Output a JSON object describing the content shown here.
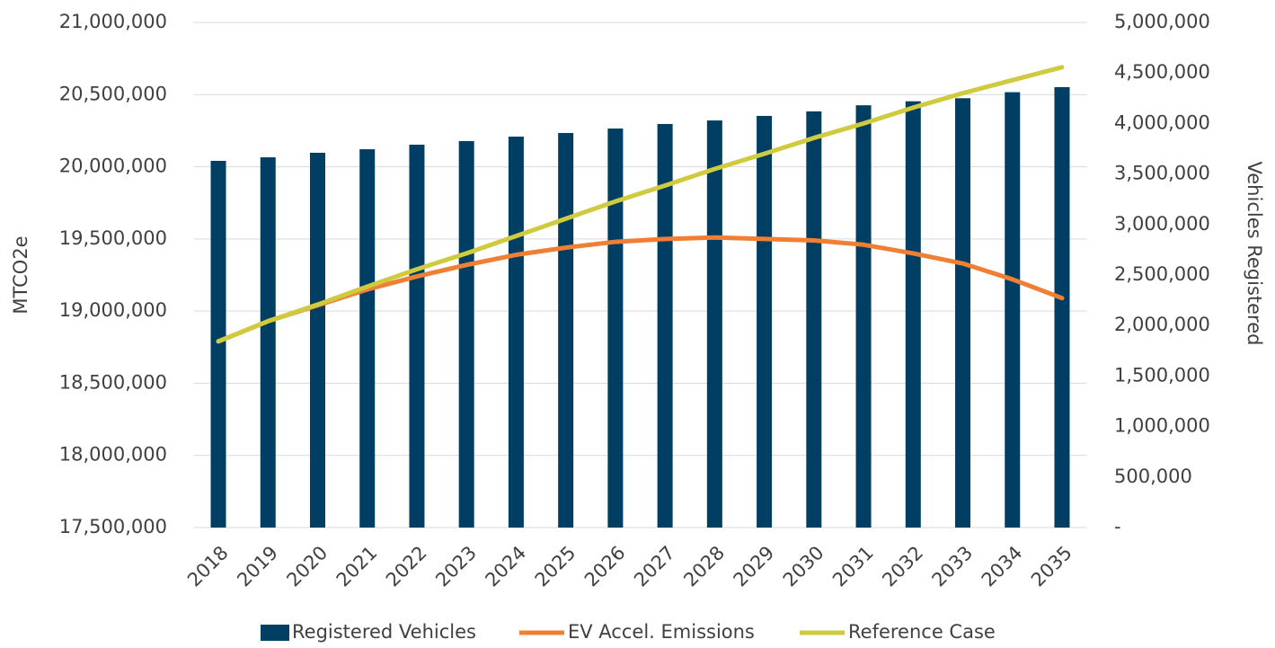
{
  "chart_data": {
    "type": "bar",
    "categories": [
      "2018",
      "2019",
      "2020",
      "2021",
      "2022",
      "2023",
      "2024",
      "2025",
      "2026",
      "2027",
      "2028",
      "2029",
      "2030",
      "2031",
      "2032",
      "2033",
      "2034",
      "2035"
    ],
    "series": [
      {
        "name": "Registered Vehicles",
        "type": "bar",
        "axis": "y2",
        "color": "#003f63",
        "values": [
          3630000,
          3665000,
          3710000,
          3745000,
          3790000,
          3826000,
          3870000,
          3906000,
          3950000,
          3995000,
          4030000,
          4075000,
          4120000,
          4180000,
          4220000,
          4250000,
          4310000,
          4360000
        ]
      },
      {
        "name": "EV Accel. Emissions",
        "type": "line",
        "color": "#ef7f35",
        "values": [
          18790000,
          18930000,
          19040000,
          19150000,
          19240000,
          19320000,
          19390000,
          19440000,
          19480000,
          19500000,
          19510000,
          19500000,
          19490000,
          19460000,
          19400000,
          19330000,
          19220000,
          19090000
        ]
      },
      {
        "name": "Reference Case",
        "type": "line",
        "color": "#cfca3e",
        "values": [
          18790000,
          18930000,
          19045000,
          19170000,
          19290000,
          19400000,
          19520000,
          19640000,
          19760000,
          19870000,
          19985000,
          20090000,
          20200000,
          20300000,
          20410000,
          20510000,
          20600000,
          20690000
        ]
      }
    ],
    "y_label": "MTCO2e",
    "y2_label": "Vehicles Registered",
    "ylim": [
      17500000,
      21000000
    ],
    "yticks": [
      {
        "value": 17500000,
        "label": "17,500,000"
      },
      {
        "value": 18000000,
        "label": "18,000,000"
      },
      {
        "value": 18500000,
        "label": "18,500,000"
      },
      {
        "value": 19000000,
        "label": "19,000,000"
      },
      {
        "value": 19500000,
        "label": "19,500,000"
      },
      {
        "value": 20000000,
        "label": "20,000,000"
      },
      {
        "value": 20500000,
        "label": "20,500,000"
      },
      {
        "value": 21000000,
        "label": "21,000,000"
      }
    ],
    "y2lim": [
      0,
      5000000
    ],
    "y2ticks": [
      {
        "value": 0,
        "label": "-"
      },
      {
        "value": 500000,
        "label": "500,000"
      },
      {
        "value": 1000000,
        "label": "1,000,000"
      },
      {
        "value": 1500000,
        "label": "1,500,000"
      },
      {
        "value": 2000000,
        "label": "2,000,000"
      },
      {
        "value": 2500000,
        "label": "2,500,000"
      },
      {
        "value": 3000000,
        "label": "3,000,000"
      },
      {
        "value": 3500000,
        "label": "3,500,000"
      },
      {
        "value": 4000000,
        "label": "4,000,000"
      },
      {
        "value": 4500000,
        "label": "4,500,000"
      },
      {
        "value": 5000000,
        "label": "5,000,000"
      }
    ],
    "grid": true,
    "legend": "bottom"
  }
}
